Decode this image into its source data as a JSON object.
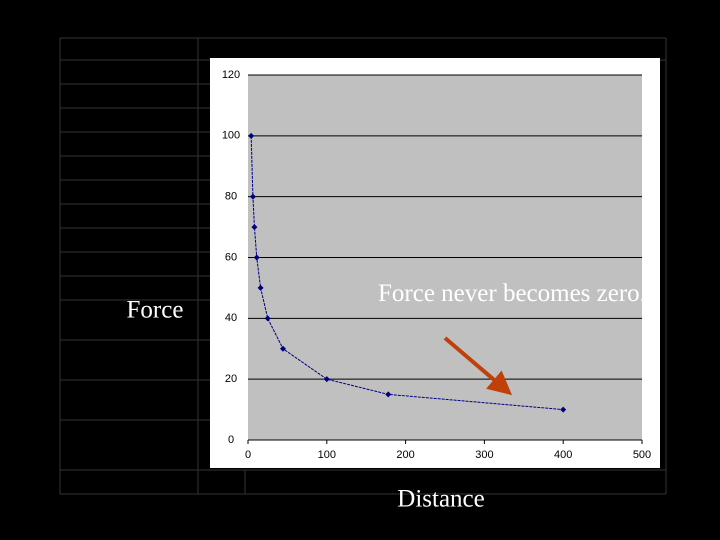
{
  "chart_data": {
    "type": "line",
    "x_label": "Distance",
    "y_label": "Force",
    "annotation": "Force never  becomes zero.",
    "x": [
      4,
      6.25,
      8.16,
      11.1,
      16,
      25,
      44.4,
      100,
      178,
      400
    ],
    "values": [
      100,
      80,
      70,
      60,
      50,
      40,
      30,
      20,
      15,
      10
    ],
    "color": "#000080",
    "arrow_color": "#c0400a",
    "xlim": [
      0,
      500
    ],
    "xticks": [
      0,
      100,
      200,
      300,
      400,
      500
    ],
    "ylim": [
      0,
      120
    ],
    "yticks": [
      0,
      20,
      40,
      60,
      80,
      100,
      120
    ],
    "grid": true
  }
}
